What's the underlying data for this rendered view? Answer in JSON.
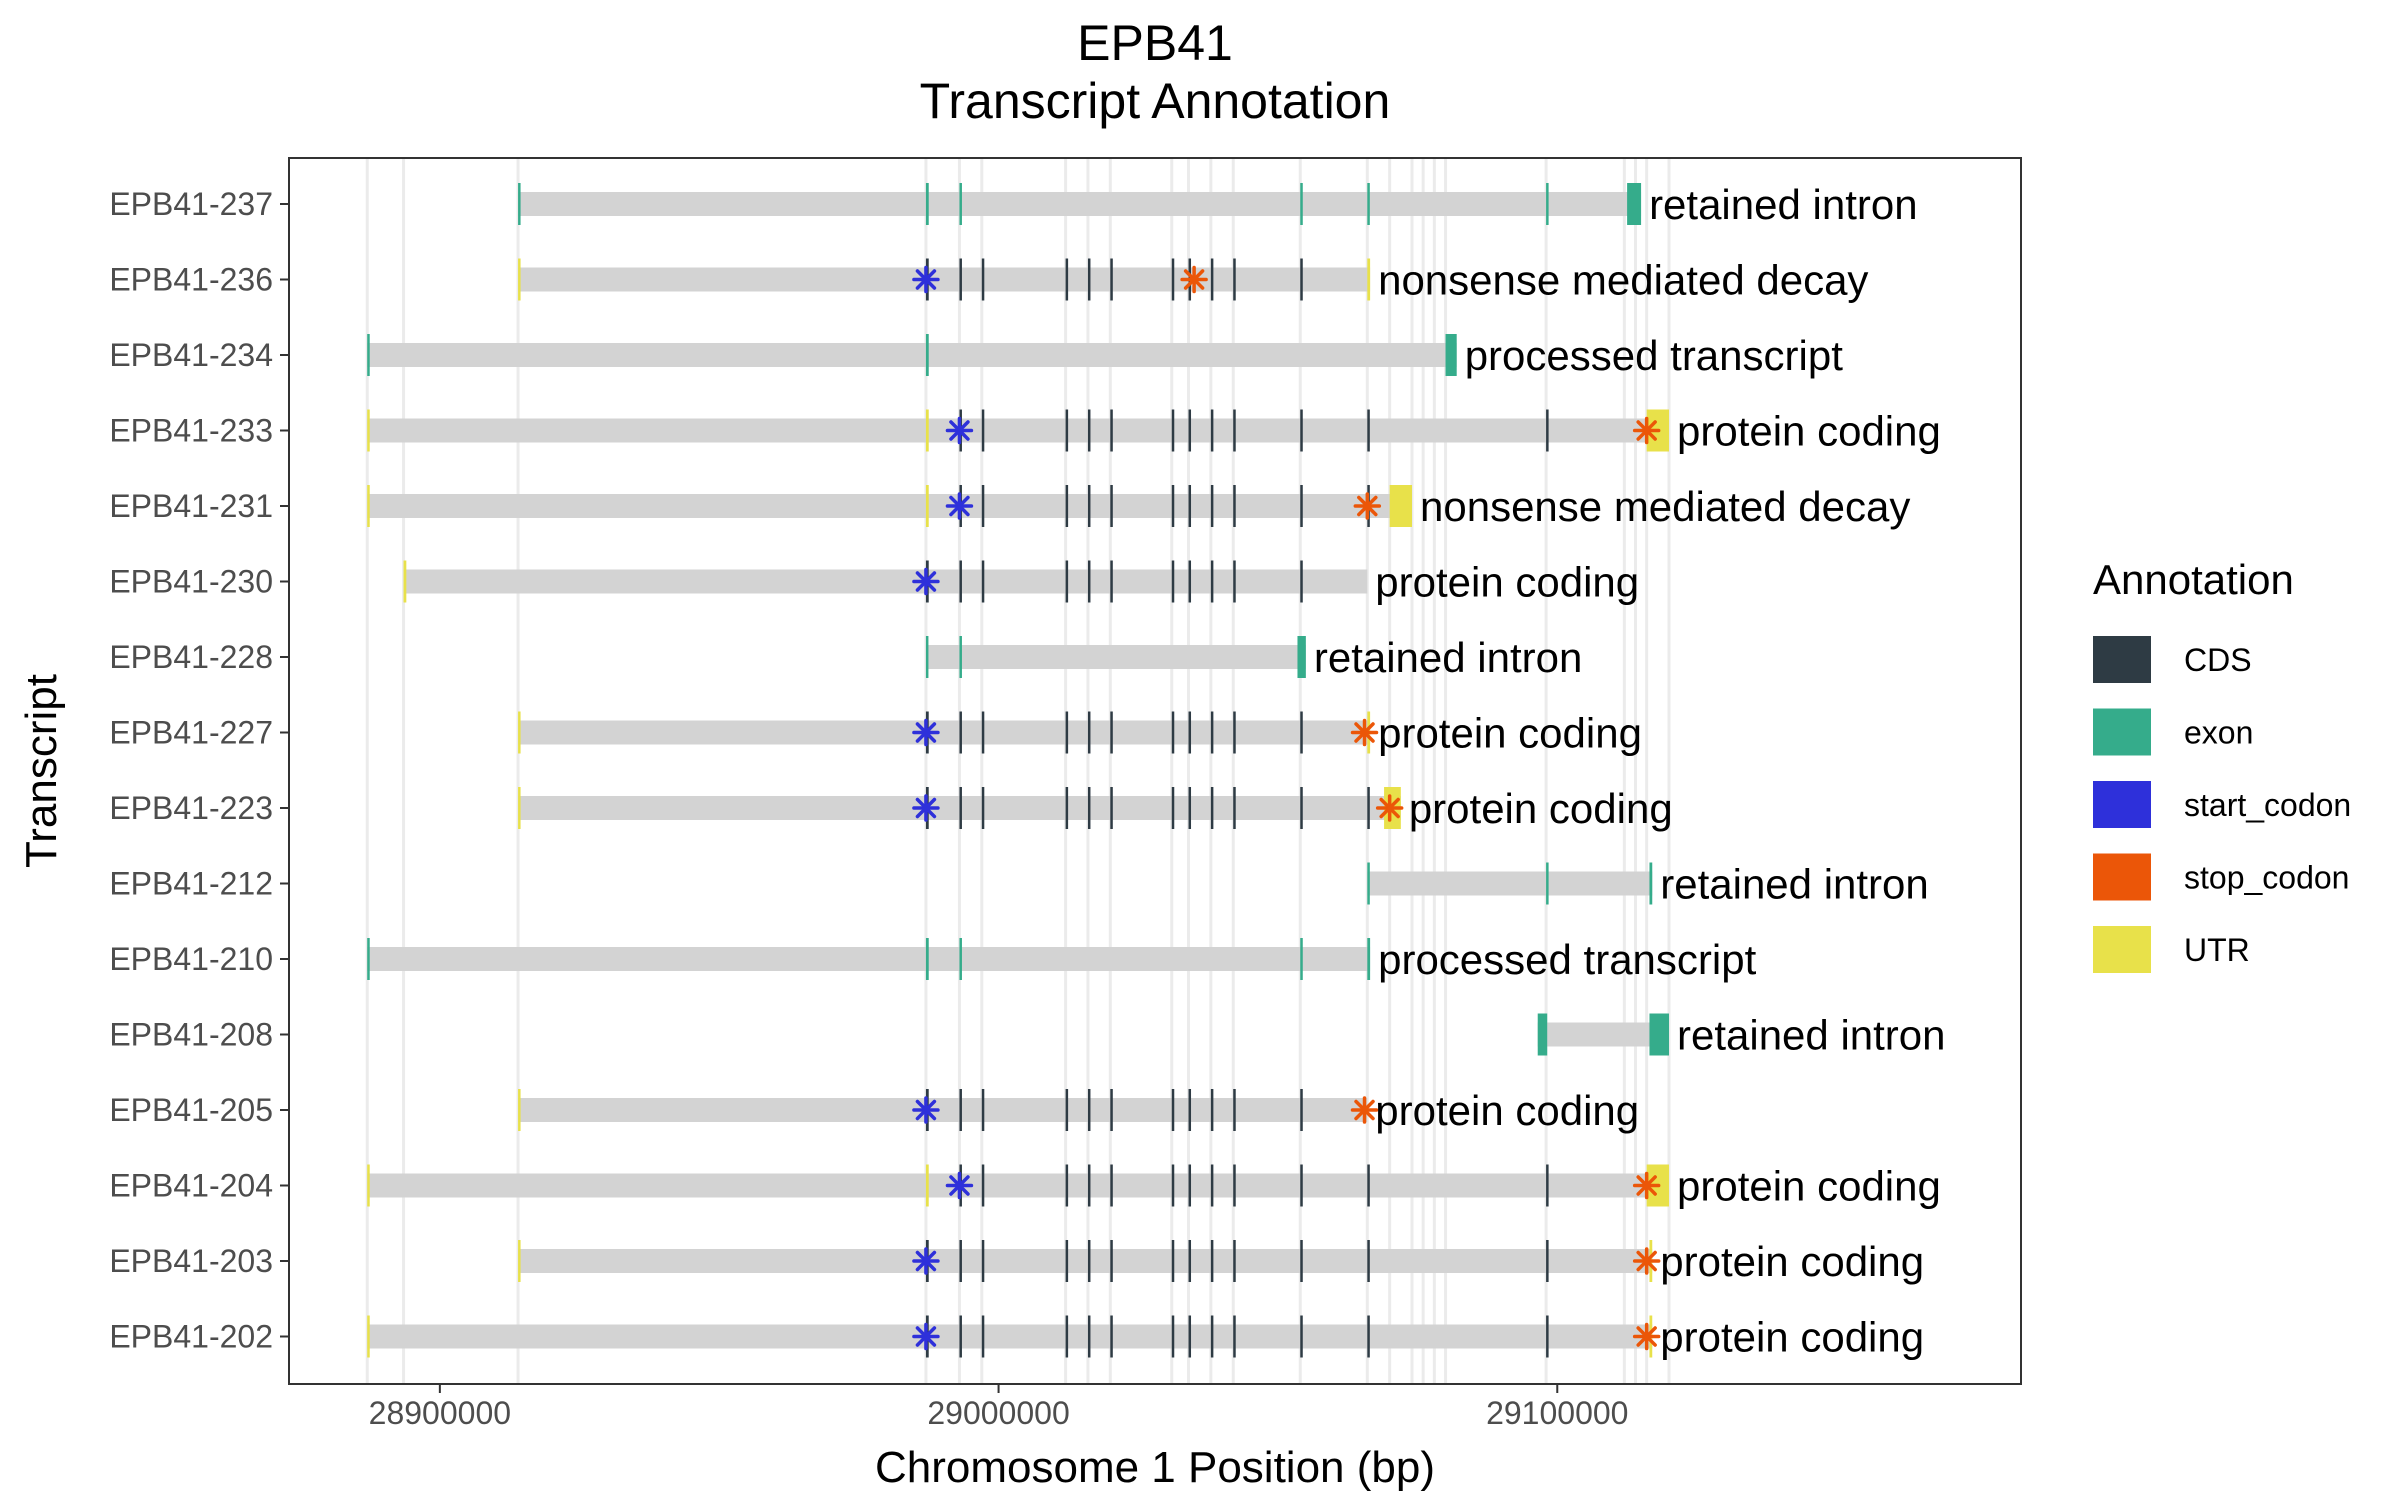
{
  "chart_data": {
    "type": "gene_model",
    "title": "EPB41",
    "subtitle": "Transcript Annotation",
    "xlabel": "Chromosome 1 Position (bp)",
    "ylabel": "Transcript",
    "xlim": [
      28873000,
      29183000
    ],
    "x_ticks": [
      28900000,
      29000000,
      29100000
    ],
    "x_tick_labels": [
      "28900000",
      "29000000",
      "29100000"
    ],
    "legend": {
      "title": "Annotation",
      "position": "right",
      "items": [
        {
          "label": "CDS",
          "color": "#2E3B44"
        },
        {
          "label": "exon",
          "color": "#35AC8B"
        },
        {
          "label": "start_codon",
          "color": "#2E30DA"
        },
        {
          "label": "stop_codon",
          "color": "#EB5608"
        },
        {
          "label": "UTR",
          "color": "#E8E14A"
        }
      ]
    },
    "colors": {
      "gene_line": "#d3d3d3",
      "exon_guides": "#ebebeb",
      "panel_border": "#333333"
    },
    "exon_guides": [
      28887000,
      28893500,
      28914000,
      28987000,
      28993000,
      28997000,
      29012000,
      29016000,
      29020000,
      29031000,
      29034000,
      29038000,
      29042000,
      29054000,
      29066000,
      29070000,
      29074000,
      29076000,
      29078000,
      29080000,
      29098000,
      29112000,
      29114000,
      29116000,
      29120000
    ],
    "transcripts": [
      {
        "name": "EPB41-237",
        "biotype": "retained intron",
        "start": 28914000,
        "end": 29115000,
        "exons": [
          [
            28914000,
            28914400
          ],
          [
            28987000,
            28987500
          ],
          [
            28993000,
            28993400
          ],
          [
            29054000,
            29054400
          ],
          [
            29066000,
            29066400
          ],
          [
            29098000,
            29098400
          ],
          [
            29112500,
            29115000
          ]
        ],
        "exon_type": "exon",
        "cds": [],
        "utr": [],
        "start_codon": null,
        "stop_codon": null
      },
      {
        "name": "EPB41-236",
        "biotype": "nonsense mediated decay",
        "start": 28914000,
        "end": 29066500,
        "exons": [],
        "exon_type": "exon",
        "cds": [
          [
            28987000,
            28987500
          ],
          [
            28993000,
            28993400
          ],
          [
            28997000,
            28997400
          ],
          [
            29012000,
            29012400
          ],
          [
            29016000,
            29016400
          ],
          [
            29020000,
            29020400
          ],
          [
            29031000,
            29031400
          ],
          [
            29034000,
            29034400
          ],
          [
            29038000,
            29038400
          ],
          [
            29042000,
            29042400
          ],
          [
            29054000,
            29054400
          ]
        ],
        "utr": [
          [
            28914000,
            28914400
          ],
          [
            29066000,
            29066500
          ]
        ],
        "start_codon": 28987000,
        "stop_codon": 29035000
      },
      {
        "name": "EPB41-234",
        "biotype": "processed transcript",
        "start": 28887000,
        "end": 29082000,
        "exons": [
          [
            28887000,
            28887400
          ],
          [
            28987000,
            28987500
          ],
          [
            29080000,
            29082000
          ]
        ],
        "exon_type": "exon",
        "cds": [],
        "utr": [],
        "start_codon": null,
        "stop_codon": null
      },
      {
        "name": "EPB41-233",
        "biotype": "protein coding",
        "start": 28887000,
        "end": 29120000,
        "exons": [],
        "exon_type": "exon",
        "cds": [
          [
            28993000,
            28993400
          ],
          [
            28997000,
            28997400
          ],
          [
            29012000,
            29012400
          ],
          [
            29016000,
            29016400
          ],
          [
            29020000,
            29020400
          ],
          [
            29031000,
            29031400
          ],
          [
            29034000,
            29034400
          ],
          [
            29038000,
            29038400
          ],
          [
            29042000,
            29042400
          ],
          [
            29054000,
            29054400
          ],
          [
            29066000,
            29066400
          ],
          [
            29098000,
            29098400
          ]
        ],
        "utr": [
          [
            28887000,
            28887400
          ],
          [
            28987000,
            28987500
          ],
          [
            29116000,
            29120000
          ]
        ],
        "start_codon": 28993000,
        "stop_codon": 29116000
      },
      {
        "name": "EPB41-231",
        "biotype": "nonsense mediated decay",
        "start": 28887000,
        "end": 29074000,
        "exons": [],
        "exon_type": "exon",
        "cds": [
          [
            28993000,
            28993400
          ],
          [
            28997000,
            28997400
          ],
          [
            29012000,
            29012400
          ],
          [
            29016000,
            29016400
          ],
          [
            29020000,
            29020400
          ],
          [
            29031000,
            29031400
          ],
          [
            29034000,
            29034400
          ],
          [
            29038000,
            29038400
          ],
          [
            29042000,
            29042400
          ],
          [
            29054000,
            29054400
          ],
          [
            29066000,
            29066400
          ]
        ],
        "utr": [
          [
            28887000,
            28887400
          ],
          [
            28987000,
            28987500
          ],
          [
            29070000,
            29074000
          ]
        ],
        "start_codon": 28993000,
        "stop_codon": 29066000
      },
      {
        "name": "EPB41-230",
        "biotype": "protein coding",
        "start": 28893500,
        "end": 29066000,
        "exons": [],
        "exon_type": "exon",
        "cds": [
          [
            28987000,
            28987500
          ],
          [
            28993000,
            28993400
          ],
          [
            28997000,
            28997400
          ],
          [
            29012000,
            29012400
          ],
          [
            29016000,
            29016400
          ],
          [
            29020000,
            29020400
          ],
          [
            29031000,
            29031400
          ],
          [
            29034000,
            29034400
          ],
          [
            29038000,
            29038400
          ],
          [
            29042000,
            29042400
          ],
          [
            29054000,
            29054400
          ]
        ],
        "utr": [
          [
            28893500,
            28894000
          ]
        ],
        "start_codon": 28987000,
        "stop_codon": null
      },
      {
        "name": "EPB41-228",
        "biotype": "retained intron",
        "start": 28987000,
        "end": 29055000,
        "exons": [
          [
            28987000,
            28987400
          ],
          [
            28993000,
            28993400
          ],
          [
            29053500,
            29055000
          ]
        ],
        "exon_type": "exon",
        "cds": [],
        "utr": [],
        "start_codon": null,
        "stop_codon": null
      },
      {
        "name": "EPB41-227",
        "biotype": "protein coding",
        "start": 28914000,
        "end": 29066500,
        "exons": [],
        "exon_type": "exon",
        "cds": [
          [
            28987000,
            28987500
          ],
          [
            28993000,
            28993400
          ],
          [
            28997000,
            28997400
          ],
          [
            29012000,
            29012400
          ],
          [
            29016000,
            29016400
          ],
          [
            29020000,
            29020400
          ],
          [
            29031000,
            29031400
          ],
          [
            29034000,
            29034400
          ],
          [
            29038000,
            29038400
          ],
          [
            29042000,
            29042400
          ],
          [
            29054000,
            29054400
          ]
        ],
        "utr": [
          [
            28914000,
            28914400
          ],
          [
            29066000,
            29066500
          ]
        ],
        "start_codon": 28987000,
        "stop_codon": 29065500
      },
      {
        "name": "EPB41-223",
        "biotype": "protein coding",
        "start": 28914000,
        "end": 29072000,
        "exons": [],
        "exon_type": "exon",
        "cds": [
          [
            28987000,
            28987500
          ],
          [
            28993000,
            28993400
          ],
          [
            28997000,
            28997400
          ],
          [
            29012000,
            29012400
          ],
          [
            29016000,
            29016400
          ],
          [
            29020000,
            29020400
          ],
          [
            29031000,
            29031400
          ],
          [
            29034000,
            29034400
          ],
          [
            29038000,
            29038400
          ],
          [
            29042000,
            29042400
          ],
          [
            29054000,
            29054400
          ],
          [
            29066000,
            29066400
          ]
        ],
        "utr": [
          [
            28914000,
            28914400
          ],
          [
            29069000,
            29072000
          ]
        ],
        "start_codon": 28987000,
        "stop_codon": 29070000
      },
      {
        "name": "EPB41-212",
        "biotype": "retained intron",
        "start": 29066000,
        "end": 29117000,
        "exons": [
          [
            29066000,
            29066400
          ],
          [
            29098000,
            29098400
          ],
          [
            29116500,
            29117000
          ]
        ],
        "exon_type": "exon",
        "cds": [],
        "utr": [],
        "start_codon": null,
        "stop_codon": null
      },
      {
        "name": "EPB41-210",
        "biotype": "processed transcript",
        "start": 28887000,
        "end": 29066500,
        "exons": [
          [
            28887000,
            28887400
          ],
          [
            28987000,
            28987500
          ],
          [
            28993000,
            28993400
          ],
          [
            29054000,
            29054400
          ],
          [
            29066000,
            29066500
          ]
        ],
        "exon_type": "exon",
        "cds": [],
        "utr": [],
        "start_codon": null,
        "stop_codon": null
      },
      {
        "name": "EPB41-208",
        "biotype": "retained intron",
        "start": 29096500,
        "end": 29120000,
        "exons": [
          [
            29096500,
            29098200
          ],
          [
            29116500,
            29120000
          ]
        ],
        "exon_type": "exon",
        "cds": [],
        "utr": [],
        "start_codon": null,
        "stop_codon": null
      },
      {
        "name": "EPB41-205",
        "biotype": "protein coding",
        "start": 28914000,
        "end": 29066000,
        "exons": [],
        "exon_type": "exon",
        "cds": [
          [
            28987000,
            28987500
          ],
          [
            28993000,
            28993400
          ],
          [
            28997000,
            28997400
          ],
          [
            29012000,
            29012400
          ],
          [
            29016000,
            29016400
          ],
          [
            29020000,
            29020400
          ],
          [
            29031000,
            29031400
          ],
          [
            29034000,
            29034400
          ],
          [
            29038000,
            29038400
          ],
          [
            29042000,
            29042400
          ],
          [
            29054000,
            29054400
          ]
        ],
        "utr": [
          [
            28914000,
            28914400
          ]
        ],
        "start_codon": 28987000,
        "stop_codon": 29065500
      },
      {
        "name": "EPB41-204",
        "biotype": "protein coding",
        "start": 28887000,
        "end": 29120000,
        "exons": [],
        "exon_type": "exon",
        "cds": [
          [
            28993000,
            28993400
          ],
          [
            28997000,
            28997400
          ],
          [
            29012000,
            29012400
          ],
          [
            29016000,
            29016400
          ],
          [
            29020000,
            29020400
          ],
          [
            29031000,
            29031400
          ],
          [
            29034000,
            29034400
          ],
          [
            29038000,
            29038400
          ],
          [
            29042000,
            29042400
          ],
          [
            29054000,
            29054400
          ],
          [
            29066000,
            29066400
          ],
          [
            29098000,
            29098400
          ]
        ],
        "utr": [
          [
            28887000,
            28887400
          ],
          [
            28987000,
            28987500
          ],
          [
            29116000,
            29120000
          ]
        ],
        "start_codon": 28993000,
        "stop_codon": 29116000
      },
      {
        "name": "EPB41-203",
        "biotype": "protein coding",
        "start": 28914000,
        "end": 29117000,
        "exons": [],
        "exon_type": "exon",
        "cds": [
          [
            28987000,
            28987500
          ],
          [
            28993000,
            28993400
          ],
          [
            28997000,
            28997400
          ],
          [
            29012000,
            29012400
          ],
          [
            29016000,
            29016400
          ],
          [
            29020000,
            29020400
          ],
          [
            29031000,
            29031400
          ],
          [
            29034000,
            29034400
          ],
          [
            29038000,
            29038400
          ],
          [
            29042000,
            29042400
          ],
          [
            29054000,
            29054400
          ],
          [
            29066000,
            29066400
          ],
          [
            29098000,
            29098400
          ]
        ],
        "utr": [
          [
            28914000,
            28914400
          ],
          [
            29116500,
            29117000
          ]
        ],
        "start_codon": 28987000,
        "stop_codon": 29116000
      },
      {
        "name": "EPB41-202",
        "biotype": "protein coding",
        "start": 28887000,
        "end": 29117000,
        "exons": [],
        "exon_type": "exon",
        "cds": [
          [
            28987000,
            28987500
          ],
          [
            28993000,
            28993400
          ],
          [
            28997000,
            28997400
          ],
          [
            29012000,
            29012400
          ],
          [
            29016000,
            29016400
          ],
          [
            29020000,
            29020400
          ],
          [
            29031000,
            29031400
          ],
          [
            29034000,
            29034400
          ],
          [
            29038000,
            29038400
          ],
          [
            29042000,
            29042400
          ],
          [
            29054000,
            29054400
          ],
          [
            29066000,
            29066400
          ],
          [
            29098000,
            29098400
          ]
        ],
        "utr": [
          [
            28887000,
            28887400
          ],
          [
            29116500,
            29117000
          ]
        ],
        "start_codon": 28987000,
        "stop_codon": 29116000
      }
    ]
  }
}
